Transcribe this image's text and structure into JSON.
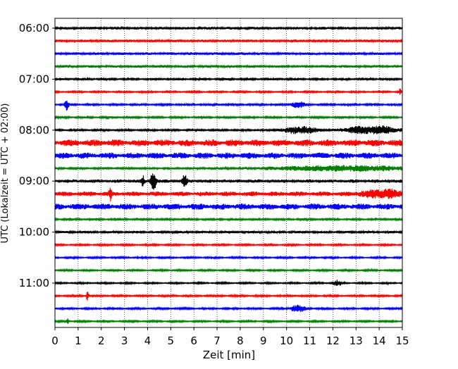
{
  "chart_data": {
    "type": "line",
    "title": "",
    "xlabel": "Zeit  [min]",
    "ylabel": "UTC (Lokalzeit = UTC + 02:00)",
    "xlim": [
      0,
      15
    ],
    "x_ticks": [
      "0",
      "1",
      "2",
      "3",
      "4",
      "5",
      "6",
      "7",
      "8",
      "9",
      "10",
      "11",
      "12",
      "13",
      "14",
      "15"
    ],
    "y_tick_labels": [
      "06:00",
      "07:00",
      "08:00",
      "09:00",
      "10:00",
      "11:00"
    ],
    "row_interval_min": 15,
    "grid": "vertical dotted at each minute",
    "row_colors": [
      "#000000",
      "#ff0000",
      "#0000ff",
      "#007f00"
    ],
    "rows": [
      {
        "start": "06:00",
        "color": "#000000",
        "amplitude": 2.0,
        "events": []
      },
      {
        "start": "06:15",
        "color": "#ff0000",
        "amplitude": 2.0,
        "events": []
      },
      {
        "start": "06:30",
        "color": "#0000ff",
        "amplitude": 2.0,
        "events": []
      },
      {
        "start": "06:45",
        "color": "#007f00",
        "amplitude": 2.0,
        "events": []
      },
      {
        "start": "07:00",
        "color": "#000000",
        "amplitude": 1.6,
        "events": []
      },
      {
        "start": "07:15",
        "color": "#ff0000",
        "amplitude": 1.3,
        "events": [
          {
            "t": 14.9,
            "amp": 4,
            "dur": 0.1
          }
        ]
      },
      {
        "start": "07:30",
        "color": "#0000ff",
        "amplitude": 1.5,
        "events": [
          {
            "t": 0.5,
            "amp": 7,
            "dur": 0.15
          },
          {
            "t": 10.5,
            "amp": 4,
            "dur": 0.5
          }
        ]
      },
      {
        "start": "07:45",
        "color": "#007f00",
        "amplitude": 1.5,
        "events": []
      },
      {
        "start": "08:00",
        "color": "#000000",
        "amplitude": 1.5,
        "events": [
          {
            "t": 10.6,
            "amp": 5,
            "dur": 1.2
          },
          {
            "t": 13.0,
            "amp": 4,
            "dur": 1.0
          },
          {
            "t": 14.1,
            "amp": 5,
            "dur": 1.2
          }
        ]
      },
      {
        "start": "08:15",
        "color": "#ff0000",
        "amplitude": 5.0,
        "events": []
      },
      {
        "start": "08:30",
        "color": "#0000ff",
        "amplitude": 4.5,
        "events": []
      },
      {
        "start": "08:45",
        "color": "#007f00",
        "amplitude": 1.6,
        "events": [
          {
            "t": 12.5,
            "amp": 3.5,
            "dur": 5.0
          }
        ]
      },
      {
        "start": "09:00",
        "color": "#000000",
        "amplitude": 2.5,
        "events": [
          {
            "t": 3.8,
            "amp": 7,
            "dur": 0.1
          },
          {
            "t": 4.25,
            "amp": 14,
            "dur": 0.2
          },
          {
            "t": 5.6,
            "amp": 9,
            "dur": 0.15
          }
        ]
      },
      {
        "start": "09:15",
        "color": "#ff0000",
        "amplitude": 3.5,
        "events": [
          {
            "t": 2.4,
            "amp": 8,
            "dur": 0.1
          },
          {
            "t": 14.2,
            "amp": 4.5,
            "dur": 1.5
          }
        ]
      },
      {
        "start": "09:30",
        "color": "#0000ff",
        "amplitude": 4.5,
        "events": []
      },
      {
        "start": "09:45",
        "color": "#007f00",
        "amplitude": 1.6,
        "events": []
      },
      {
        "start": "10:00",
        "color": "#000000",
        "amplitude": 1.8,
        "events": []
      },
      {
        "start": "10:15",
        "color": "#ff0000",
        "amplitude": 1.3,
        "events": []
      },
      {
        "start": "10:30",
        "color": "#0000ff",
        "amplitude": 1.3,
        "events": []
      },
      {
        "start": "10:45",
        "color": "#007f00",
        "amplitude": 1.3,
        "events": []
      },
      {
        "start": "11:00",
        "color": "#000000",
        "amplitude": 1.2,
        "events": [
          {
            "t": 12.2,
            "amp": 4,
            "dur": 0.3
          }
        ]
      },
      {
        "start": "11:15",
        "color": "#ff0000",
        "amplitude": 1.4,
        "events": [
          {
            "t": 1.4,
            "amp": 8,
            "dur": 0.08
          }
        ]
      },
      {
        "start": "11:30",
        "color": "#0000ff",
        "amplitude": 1.4,
        "events": [
          {
            "t": 10.5,
            "amp": 4.5,
            "dur": 0.6
          }
        ]
      },
      {
        "start": "11:45",
        "color": "#007f00",
        "amplitude": 1.3,
        "events": [
          {
            "t": 0.55,
            "amp": 3.5,
            "dur": 0.1
          }
        ]
      }
    ]
  }
}
